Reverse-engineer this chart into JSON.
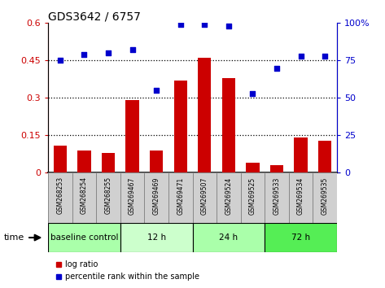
{
  "title": "GDS3642 / 6757",
  "samples": [
    "GSM268253",
    "GSM268254",
    "GSM268255",
    "GSM269467",
    "GSM269469",
    "GSM269471",
    "GSM269507",
    "GSM269524",
    "GSM269525",
    "GSM269533",
    "GSM269534",
    "GSM269535"
  ],
  "log_ratio": [
    0.11,
    0.09,
    0.08,
    0.29,
    0.09,
    0.37,
    0.46,
    0.38,
    0.04,
    0.03,
    0.14,
    0.13
  ],
  "percentile_rank": [
    75,
    79,
    80,
    82,
    55,
    99,
    99,
    98,
    53,
    70,
    78,
    78
  ],
  "bar_color": "#cc0000",
  "dot_color": "#0000cc",
  "groups": [
    {
      "label": "baseline control",
      "start": 0,
      "end": 3,
      "color": "#aaffaa"
    },
    {
      "label": "12 h",
      "start": 3,
      "end": 6,
      "color": "#ccffcc"
    },
    {
      "label": "24 h",
      "start": 6,
      "end": 9,
      "color": "#aaffaa"
    },
    {
      "label": "72 h",
      "start": 9,
      "end": 12,
      "color": "#55ee55"
    }
  ],
  "ylim_left": [
    0,
    0.6
  ],
  "ylim_right": [
    0,
    100
  ],
  "yticks_left": [
    0,
    0.15,
    0.3,
    0.45,
    0.6
  ],
  "yticks_right": [
    0,
    25,
    50,
    75,
    100
  ],
  "ytick_labels_left": [
    "0",
    "0.15",
    "0.3",
    "0.45",
    "0.6"
  ],
  "ytick_labels_right": [
    "0",
    "25",
    "50",
    "75",
    "100%"
  ],
  "hlines": [
    0.15,
    0.3,
    0.45
  ],
  "left_axis_color": "#cc0000",
  "right_axis_color": "#0000cc",
  "sample_box_bg": "#d0d0d0",
  "sample_box_edge": "#888888"
}
